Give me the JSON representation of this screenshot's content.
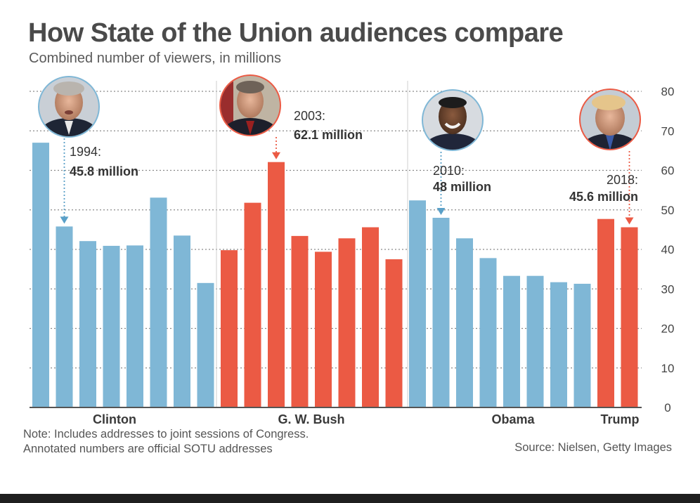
{
  "title": "How State of the Union audiences compare",
  "subtitle": "Combined number of viewers, in millions",
  "note_line1": "Note: Includes addresses to joint sessions of Congress.",
  "note_line2": "Annotated numbers are official SOTU addresses",
  "source": "Source: Nielsen, Getty Images",
  "colors": {
    "democrat": "#7fb7d6",
    "republican": "#eb5a44",
    "grid": "#8a8a8a",
    "axis": "#555555"
  },
  "chart_data": {
    "type": "bar",
    "title": "How State of the Union audiences compare",
    "subtitle": "Combined number of viewers, in millions",
    "xlabel": "",
    "ylabel": "Combined number of viewers, in millions",
    "ylim": [
      0,
      80
    ],
    "yticks": [
      0,
      10,
      20,
      30,
      40,
      50,
      60,
      70,
      80
    ],
    "grid": true,
    "groups": [
      {
        "name": "Clinton",
        "party": "democrat",
        "values": [
          67.0,
          45.8,
          42.1,
          40.9,
          41.0,
          53.1,
          43.5,
          31.5
        ]
      },
      {
        "name": "G. W. Bush",
        "party": "republican",
        "values": [
          39.8,
          51.8,
          62.1,
          43.4,
          39.4,
          42.8,
          45.6,
          37.5
        ]
      },
      {
        "name": "Obama",
        "party": "democrat",
        "values": [
          52.4,
          48.0,
          42.8,
          37.8,
          33.3,
          33.3,
          31.7,
          31.3
        ]
      },
      {
        "name": "Trump",
        "party": "republican",
        "values": [
          47.7,
          45.6
        ]
      }
    ],
    "annotations": [
      {
        "year": "1994:",
        "value": "45.8 million",
        "group": 0,
        "bar": 1,
        "portrait": "clinton-portrait"
      },
      {
        "year": "2003:",
        "value": "62.1 million",
        "group": 1,
        "bar": 2,
        "portrait": "bush-portrait"
      },
      {
        "year": "2010:",
        "value": "48 million",
        "group": 2,
        "bar": 1,
        "portrait": "obama-portrait"
      },
      {
        "year": "2018:",
        "value": "45.6 million",
        "group": 3,
        "bar": 1,
        "portrait": "trump-portrait"
      }
    ]
  }
}
